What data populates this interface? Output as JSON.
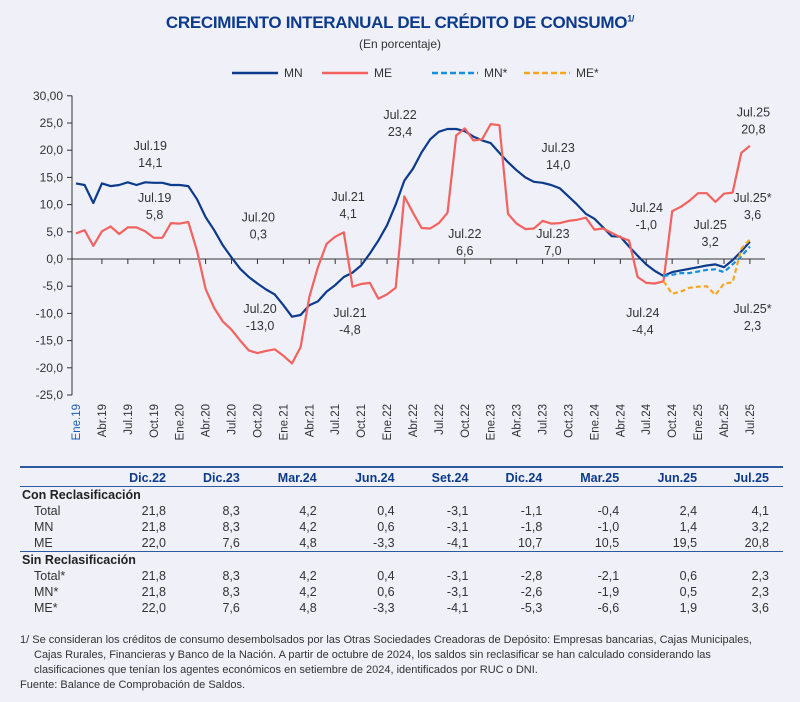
{
  "title": "CRECIMIENTO INTERANUAL DEL CRÉDITO DE CONSUMO",
  "title_note": "1/",
  "subtitle": "(En porcentaje)",
  "chart_data": {
    "type": "line",
    "ylim": [
      -25,
      30
    ],
    "yticks": [
      30,
      25,
      20,
      15,
      10,
      5,
      0,
      -5,
      -10,
      -15,
      -20,
      -25
    ],
    "ytick_labels": [
      "30,00",
      "25,0",
      "20,0",
      "15,0",
      "10,0",
      "5,0",
      "0,0",
      "-5,0",
      "-10,0",
      "-15,0",
      "-20,0",
      "-25,0"
    ],
    "xtick_labels": [
      "Ene.19",
      "Abr.19",
      "Jul.19",
      "Oct.19",
      "Ene.20",
      "Abr.20",
      "Jul.20",
      "Oct.20",
      "Ene.21",
      "Abr.21",
      "Jul.21",
      "Oct.21",
      "Ene.22",
      "Abr.22",
      "Jul.22",
      "Oct.22",
      "Ene.23",
      "Abr.23",
      "Jul.23",
      "Oct.23",
      "Ene.24",
      "Abr.24",
      "Jul.24",
      "Oct.24",
      "Ene.25",
      "Abr.25",
      "Jul.25"
    ],
    "x_start": "Ene.19",
    "x_end": "Jul.25",
    "frequency": "monthly",
    "legend_position": "top-center",
    "series": [
      {
        "name": "MN",
        "color": "#0d3b8c",
        "dash": false,
        "start_index": 0,
        "values": [
          13.9,
          13.6,
          10.3,
          13.9,
          13.4,
          13.6,
          14.1,
          13.6,
          14.1,
          14.0,
          14.0,
          13.6,
          13.6,
          13.4,
          11.0,
          7.7,
          5.3,
          2.5,
          0.3,
          -1.8,
          -3.3,
          -4.5,
          -5.6,
          -6.5,
          -8.5,
          -10.6,
          -10.3,
          -8.5,
          -7.8,
          -6.0,
          -4.8,
          -3.3,
          -2.5,
          -1.2,
          1.0,
          3.4,
          6.2,
          10.0,
          14.4,
          16.6,
          19.6,
          22.0,
          23.4,
          23.9,
          23.9,
          23.5,
          22.5,
          21.8,
          21.3,
          19.5,
          17.8,
          16.3,
          15.0,
          14.2,
          14.0,
          13.6,
          13.0,
          11.5,
          10.0,
          8.3,
          7.4,
          5.8,
          4.2,
          4.1,
          2.3,
          0.6,
          -1.0,
          -2.2,
          -3.1,
          -2.4,
          -2.1,
          -1.8,
          -1.5,
          -1.2,
          -1.0,
          -1.5,
          -0.2,
          1.4,
          3.2
        ]
      },
      {
        "name": "ME",
        "color": "#f2625f",
        "dash": false,
        "start_index": 0,
        "values": [
          4.7,
          5.3,
          2.4,
          5.1,
          6.0,
          4.6,
          5.8,
          5.8,
          5.1,
          3.9,
          3.9,
          6.6,
          6.5,
          6.8,
          1.5,
          -5.5,
          -9.0,
          -11.5,
          -13.0,
          -15.0,
          -16.8,
          -17.3,
          -16.9,
          -16.6,
          -17.8,
          -19.2,
          -16.2,
          -7.0,
          -1.5,
          2.8,
          4.1,
          4.9,
          -5.1,
          -4.6,
          -4.4,
          -7.3,
          -6.5,
          -5.3,
          11.5,
          8.5,
          5.7,
          5.6,
          6.6,
          8.5,
          22.7,
          24.0,
          21.8,
          22.0,
          24.8,
          24.6,
          8.3,
          6.5,
          5.5,
          5.6,
          7.0,
          6.5,
          6.6,
          7.0,
          7.2,
          7.6,
          5.4,
          5.6,
          4.8,
          4.0,
          3.4,
          -3.3,
          -4.4,
          -4.5,
          -4.1,
          8.8,
          9.6,
          10.7,
          12.1,
          12.1,
          10.5,
          12.0,
          12.2,
          19.5,
          20.8
        ]
      },
      {
        "name": "MN*",
        "color": "#1a8fd8",
        "dash": true,
        "start_index": 68,
        "values": [
          -3.1,
          -2.9,
          -2.6,
          -2.6,
          -2.3,
          -2.0,
          -1.9,
          -2.4,
          -1.0,
          0.5,
          2.3
        ]
      },
      {
        "name": "ME*",
        "color": "#f6a623",
        "dash": true,
        "start_index": 68,
        "values": [
          -4.1,
          -6.4,
          -6.0,
          -5.3,
          -5.1,
          -5.0,
          -6.6,
          -4.5,
          -4.3,
          1.9,
          3.6
        ]
      }
    ],
    "annotations": [
      {
        "l1": "Jul.19",
        "l2": "14,1",
        "m": 8.6,
        "v": 19.5
      },
      {
        "l1": "Jul.19",
        "l2": "5,8",
        "m": 9.1,
        "v": 9.9
      },
      {
        "l1": "Jul.20",
        "l2": "0,3",
        "m": 21.1,
        "v": 6.3
      },
      {
        "l1": "Jul.20",
        "l2": "-13,0",
        "m": 21.3,
        "v": -10.5
      },
      {
        "l1": "Jul.21",
        "l2": "4,1",
        "m": 31.5,
        "v": 10.1
      },
      {
        "l1": "Jul.21",
        "l2": "-4,8",
        "m": 31.7,
        "v": -11.2
      },
      {
        "l1": "Jul.22",
        "l2": "23,4",
        "m": 37.5,
        "v": 25.2
      },
      {
        "l1": "Jul.22",
        "l2": "6,6",
        "m": 45,
        "v": 3.3
      },
      {
        "l1": "Jul.23",
        "l2": "14,0",
        "m": 55.8,
        "v": 19.1
      },
      {
        "l1": "Jul.23",
        "l2": "7,0",
        "m": 55.2,
        "v": 3.3
      },
      {
        "l1": "Jul.24",
        "l2": "-1,0",
        "m": 66,
        "v": 8.1
      },
      {
        "l1": "Jul.24",
        "l2": "-4,4",
        "m": 65.6,
        "v": -11.2
      },
      {
        "l1": "Jul.25",
        "l2": "3,2",
        "m": 73.4,
        "v": 5.0
      },
      {
        "l1": "Jul.25",
        "l2": "20,8",
        "m": 78.4,
        "v": 25.6
      },
      {
        "l1": "Jul.25*",
        "l2": "3,6",
        "m": 78.3,
        "v": 9.9
      },
      {
        "l1": "Jul.25*",
        "l2": "2,3",
        "m": 78.3,
        "v": -10.5
      }
    ]
  },
  "table": {
    "headers": [
      "Dic.22",
      "Dic.23",
      "Mar.24",
      "Jun.24",
      "Set.24",
      "Dic.24",
      "Mar.25",
      "Jun.25",
      "Jul.25"
    ],
    "groups": [
      {
        "label": "Con Reclasificación",
        "rows": [
          {
            "label": "Total",
            "values": [
              "21,8",
              "8,3",
              "4,2",
              "0,4",
              "-3,1",
              "-1,1",
              "-0,4",
              "2,4",
              "4,1"
            ]
          },
          {
            "label": "MN",
            "values": [
              "21,8",
              "8,3",
              "4,2",
              "0,6",
              "-3,1",
              "-1,8",
              "-1,0",
              "1,4",
              "3,2"
            ]
          },
          {
            "label": "ME",
            "values": [
              "22,0",
              "7,6",
              "4,8",
              "-3,3",
              "-4,1",
              "10,7",
              "10,5",
              "19,5",
              "20,8"
            ]
          }
        ]
      },
      {
        "label": "Sin Reclasificación",
        "rows": [
          {
            "label": "Total*",
            "values": [
              "21,8",
              "8,3",
              "4,2",
              "0,4",
              "-3,1",
              "-2,8",
              "-2,1",
              "0,6",
              "2,3"
            ]
          },
          {
            "label": "MN*",
            "values": [
              "21,8",
              "8,3",
              "4,2",
              "0,6",
              "-3,1",
              "-2,6",
              "-1,9",
              "0,5",
              "2,3"
            ]
          },
          {
            "label": "ME*",
            "values": [
              "22,0",
              "7,6",
              "4,8",
              "-3,3",
              "-4,1",
              "-5,3",
              "-6,6",
              "1,9",
              "3,6"
            ]
          }
        ]
      }
    ]
  },
  "footnote": "1/  Se consideran los créditos de consumo desembolsados por las Otras Sociedades Creadoras de Depósito: Empresas bancarias, Cajas Municipales, Cajas Rurales, Financieras y Banco de la Nación. A partir de octubre de 2024, los saldos sin reclasificar se han calculado considerando las clasificaciones que tenían los agentes económicos en setiembre de 2024, identificados por RUC o DNI.",
  "source": "Fuente: Balance de Comprobación de Saldos."
}
